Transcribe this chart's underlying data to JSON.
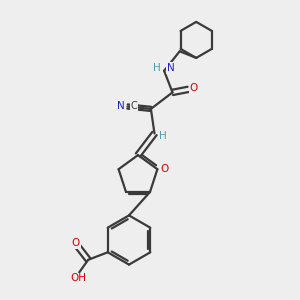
{
  "bg_color": "#eeeeee",
  "bond_color": "#3a3a3a",
  "bond_width": 1.6,
  "atom_colors": {
    "C": "#3a3a3a",
    "N": "#2020cc",
    "O": "#dd0000",
    "H": "#5599aa"
  },
  "layout": {
    "xlim": [
      0,
      10
    ],
    "ylim": [
      0,
      10
    ]
  }
}
